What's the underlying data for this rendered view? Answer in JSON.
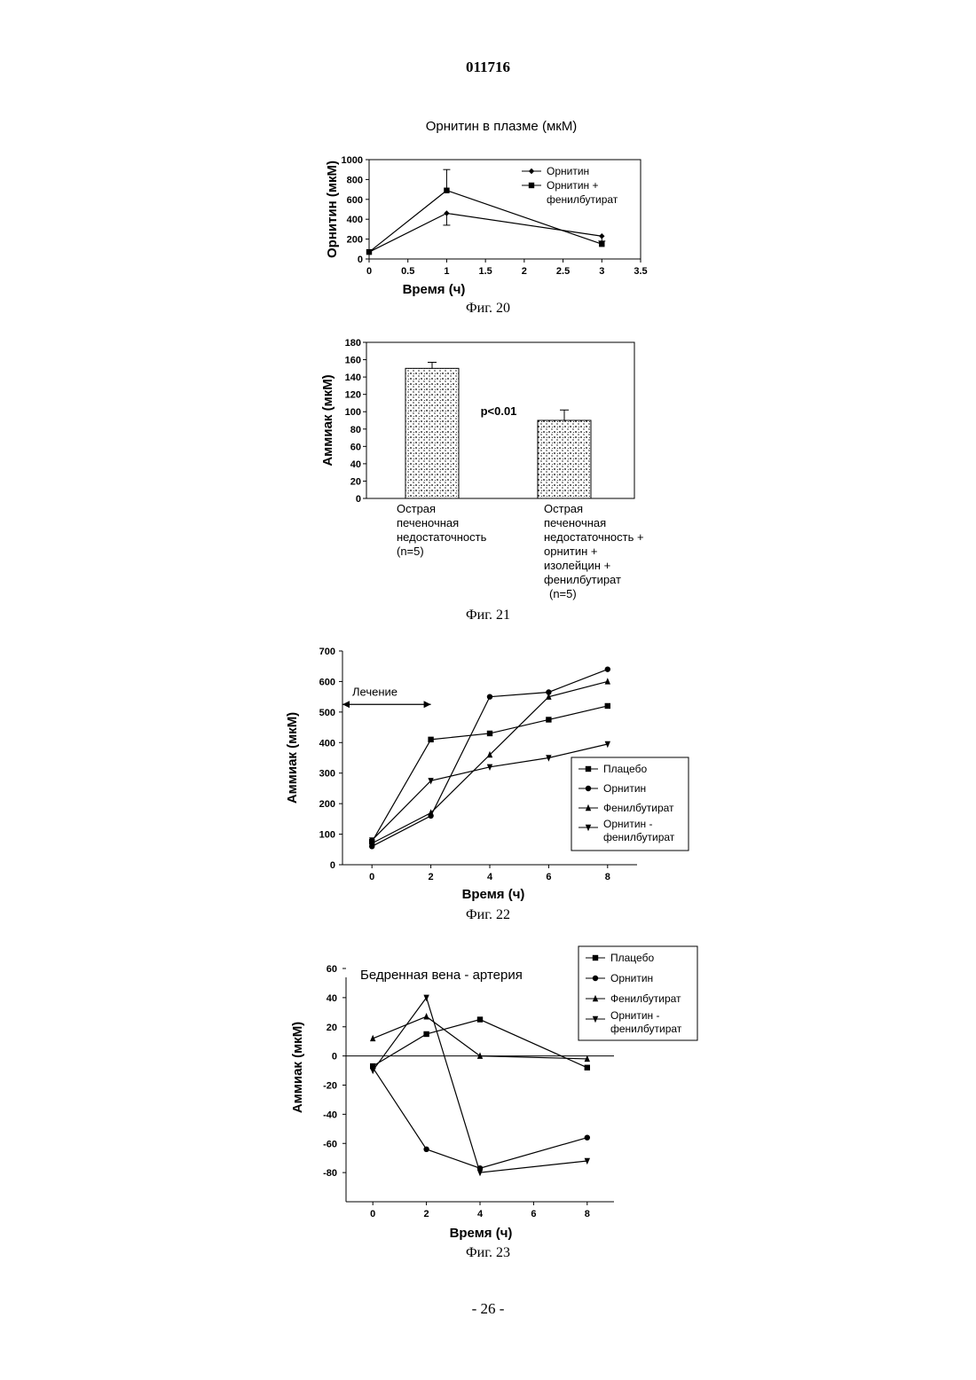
{
  "document_number": "011716",
  "page_number": "- 26 -",
  "chart_data": [
    {
      "id": "fig20",
      "type": "line",
      "caption": "Фиг. 20",
      "title": "Орнитин в плазме (мкМ)",
      "xlabel": "Время (ч)",
      "ylabel": "Орнитин (мкМ)",
      "xlim": [
        0,
        3.5
      ],
      "ylim": [
        0,
        1000
      ],
      "xticks": [
        0,
        0.5,
        1,
        1.5,
        2,
        2.5,
        3,
        3.5
      ],
      "xtick_labels": [
        "0",
        "0.5",
        "1",
        "1.5",
        "2",
        "2.5",
        "3",
        "3.5"
      ],
      "yticks": [
        0,
        200,
        400,
        600,
        800,
        1000
      ],
      "legend_position": "top-right",
      "series": [
        {
          "name": "Орнитин",
          "marker": "diamond",
          "x": [
            0,
            1,
            3
          ],
          "y": [
            70,
            460,
            230
          ]
        },
        {
          "name": "Орнитин + фенилбутират",
          "marker": "square",
          "x": [
            0,
            1,
            3
          ],
          "y": [
            70,
            690,
            150
          ],
          "error": [
            0,
            210,
            0
          ]
        }
      ],
      "error_bars": [
        {
          "x": 1,
          "y": 460,
          "low": 340
        },
        {
          "x": 1,
          "y": 690,
          "high": 900
        },
        {
          "x": 3,
          "y": 230,
          "low": 180
        }
      ]
    },
    {
      "id": "fig21",
      "type": "bar",
      "caption": "Фиг. 21",
      "ylabel": "Аммиак (мкМ)",
      "ylim": [
        0,
        180
      ],
      "yticks": [
        0,
        20,
        40,
        60,
        80,
        100,
        120,
        140,
        160,
        180
      ],
      "annotation": "p<0.01",
      "categories": [
        [
          "Острая",
          "печеночная",
          "недостаточность",
          "(n=5)"
        ],
        [
          "Острая",
          "печеночная",
          "недостаточность +",
          "орнитин +",
          "изолейцин +",
          "фенилбутират",
          "(n=5)"
        ]
      ],
      "values": [
        150,
        90
      ],
      "errors": [
        7,
        12
      ]
    },
    {
      "id": "fig22",
      "type": "line",
      "caption": "Фиг. 22",
      "xlabel": "Время (ч)",
      "ylabel": "Аммиак (мкМ)",
      "xlim": [
        -1,
        9
      ],
      "ylim": [
        0,
        700
      ],
      "xticks": [
        0,
        2,
        4,
        6,
        8
      ],
      "yticks": [
        0,
        100,
        200,
        300,
        400,
        500,
        600,
        700
      ],
      "annotation": "Лечение",
      "treatment_interval": [
        -1,
        2
      ],
      "legend_position": "right",
      "series": [
        {
          "name": "Плацебо",
          "marker": "square",
          "x": [
            0,
            2,
            4,
            6,
            8
          ],
          "y": [
            75,
            410,
            430,
            475,
            520
          ]
        },
        {
          "name": "Орнитин",
          "marker": "circle",
          "x": [
            0,
            2,
            4,
            6,
            8
          ],
          "y": [
            60,
            160,
            550,
            565,
            640
          ]
        },
        {
          "name": "Фенилбутират",
          "marker": "triangle-up",
          "x": [
            0,
            2,
            4,
            6,
            8
          ],
          "y": [
            70,
            170,
            360,
            550,
            600
          ]
        },
        {
          "name": "Орнитин - фенилбутират",
          "marker": "triangle-down",
          "x": [
            0,
            2,
            4,
            6,
            8
          ],
          "y": [
            80,
            275,
            320,
            350,
            395
          ]
        }
      ]
    },
    {
      "id": "fig23",
      "type": "line",
      "caption": "Фиг. 23",
      "title": "Бедренная вена - артерия",
      "xlabel": "Время (ч)",
      "ylabel": "Аммиак (мкМ)",
      "xlim": [
        -1,
        9
      ],
      "ylim": [
        -100,
        60
      ],
      "xticks": [
        0,
        2,
        4,
        6,
        8
      ],
      "yticks": [
        -80,
        -60,
        -40,
        -20,
        0,
        20,
        40,
        60
      ],
      "zero_line": true,
      "legend_position": "top-right",
      "series": [
        {
          "name": "Плацебо",
          "marker": "square",
          "x": [
            0,
            2,
            4,
            8
          ],
          "y": [
            -7,
            15,
            25,
            -8
          ]
        },
        {
          "name": "Орнитин",
          "marker": "circle",
          "x": [
            0,
            2,
            4,
            8
          ],
          "y": [
            -8,
            -64,
            -77,
            -56
          ]
        },
        {
          "name": "Фенилбутират",
          "marker": "triangle-up",
          "x": [
            0,
            2,
            4,
            8
          ],
          "y": [
            12,
            27,
            0,
            -2
          ]
        },
        {
          "name": "Орнитин - фенилбутират",
          "marker": "triangle-down",
          "x": [
            0,
            2,
            4,
            8
          ],
          "y": [
            -10,
            40,
            -80,
            -72
          ]
        }
      ]
    }
  ]
}
